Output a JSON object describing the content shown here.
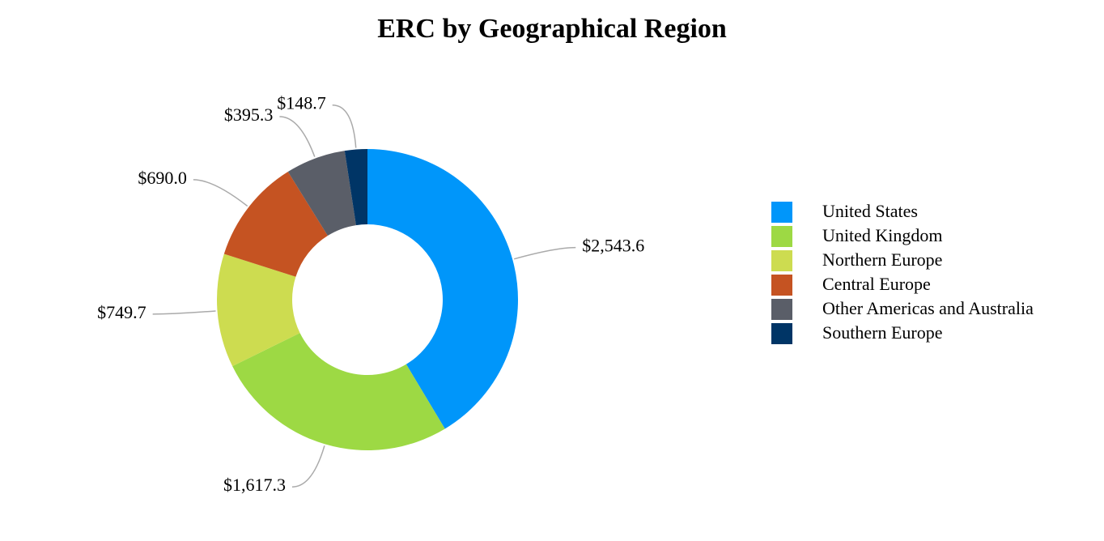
{
  "chart_data": {
    "type": "pie",
    "title": "ERC by Geographical Region",
    "categories": [
      "United States",
      "United Kingdom",
      "Northern Europe",
      "Central Europe",
      "Other Americas and Australia",
      "Southern Europe"
    ],
    "values": [
      2543.6,
      1617.3,
      749.7,
      690.0,
      395.3,
      148.7
    ],
    "value_labels": [
      "$2,543.6",
      "$1,617.3",
      "$749.7",
      "$690.0",
      "$395.3",
      "$148.7"
    ],
    "colors": [
      "#0096fa",
      "#9dd944",
      "#cddc50",
      "#c55322",
      "#5a5e68",
      "#003566"
    ],
    "legend": "right"
  }
}
